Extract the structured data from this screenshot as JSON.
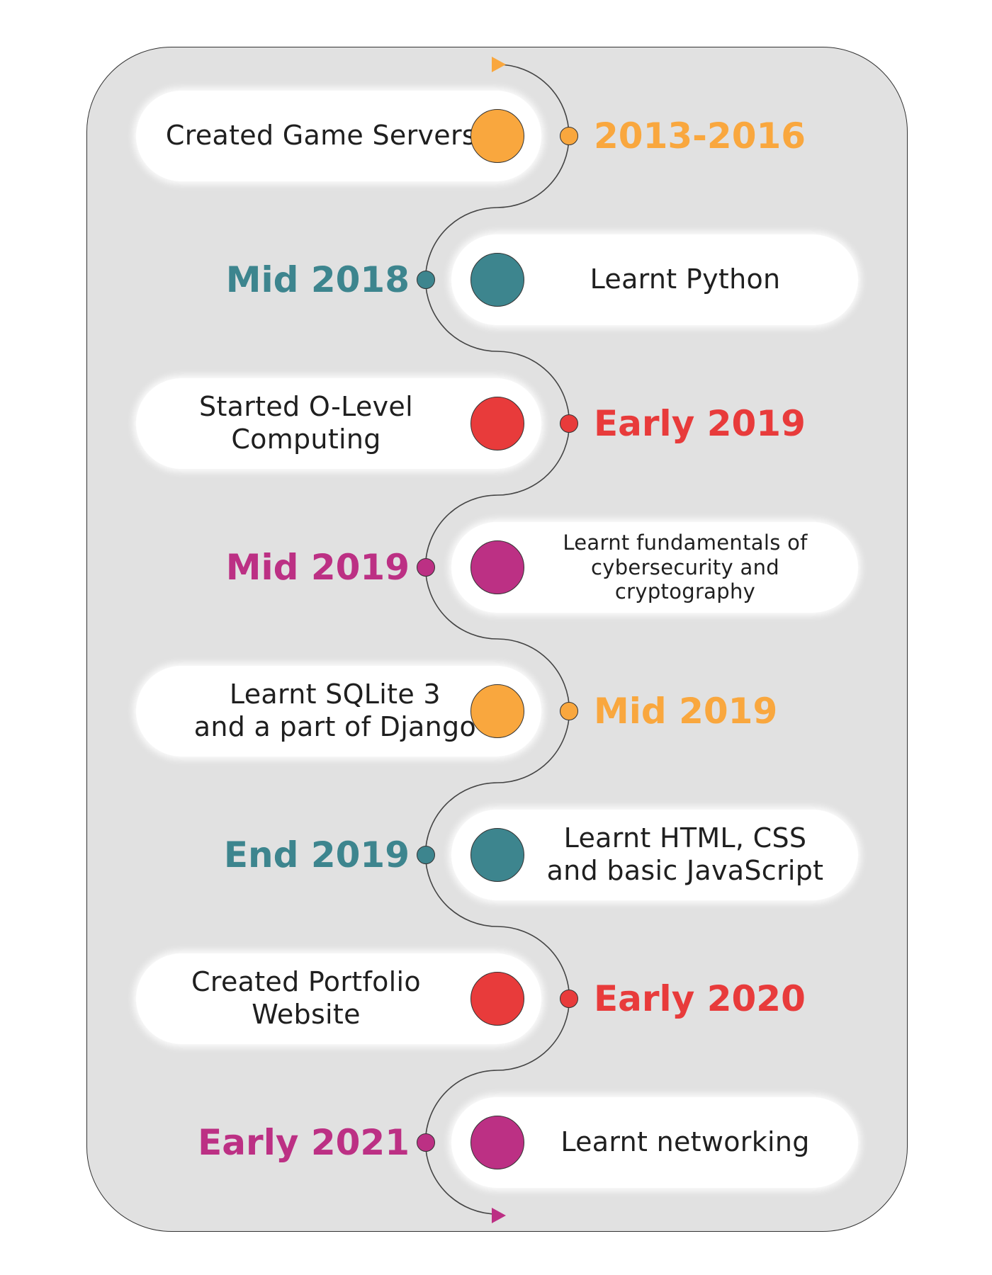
{
  "colors": {
    "orange": "#f9a73e",
    "teal": "#3d858e",
    "red": "#e83b3b",
    "magenta": "#bc3084",
    "panel": "#e1e1e1"
  },
  "events": [
    {
      "date": "2013-2016",
      "text": "Created Game Servers",
      "color": "#f9a73e",
      "side": "left"
    },
    {
      "date": "Mid 2018",
      "text": "Learnt Python",
      "color": "#3d858e",
      "side": "right"
    },
    {
      "date": "Early 2019",
      "text": "Started O-Level Computing",
      "color": "#e83b3b",
      "side": "left"
    },
    {
      "date": "Mid 2019",
      "text": "Learnt fundamentals of\ncybersecurity and cryptography",
      "color": "#bc3084",
      "side": "right"
    },
    {
      "date": "Mid 2019",
      "text": "Learnt SQLite 3\nand a part of Django",
      "color": "#f9a73e",
      "side": "left"
    },
    {
      "date": "End 2019",
      "text": "Learnt HTML, CSS\nand basic JavaScript",
      "color": "#3d858e",
      "side": "right"
    },
    {
      "date": "Early 2020",
      "text": "Created Portfolio Website",
      "color": "#e83b3b",
      "side": "left"
    },
    {
      "date": "Early 2021",
      "text": "Learnt networking",
      "color": "#bc3084",
      "side": "right"
    }
  ]
}
